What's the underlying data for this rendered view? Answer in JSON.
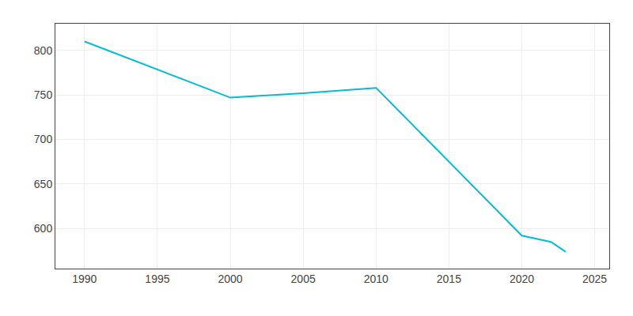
{
  "chart_data": {
    "type": "line",
    "x": [
      1990,
      2000,
      2005,
      2010,
      2020,
      2022,
      2023
    ],
    "values": [
      810,
      747,
      752,
      758,
      592,
      585,
      574
    ],
    "color": "#00bcd4",
    "xlim": [
      1988,
      2026
    ],
    "ylim": [
      555,
      830
    ],
    "xticks": [
      1990,
      1995,
      2000,
      2005,
      2010,
      2015,
      2020,
      2025
    ],
    "yticks": [
      600,
      650,
      700,
      750,
      800
    ],
    "grid": true
  }
}
